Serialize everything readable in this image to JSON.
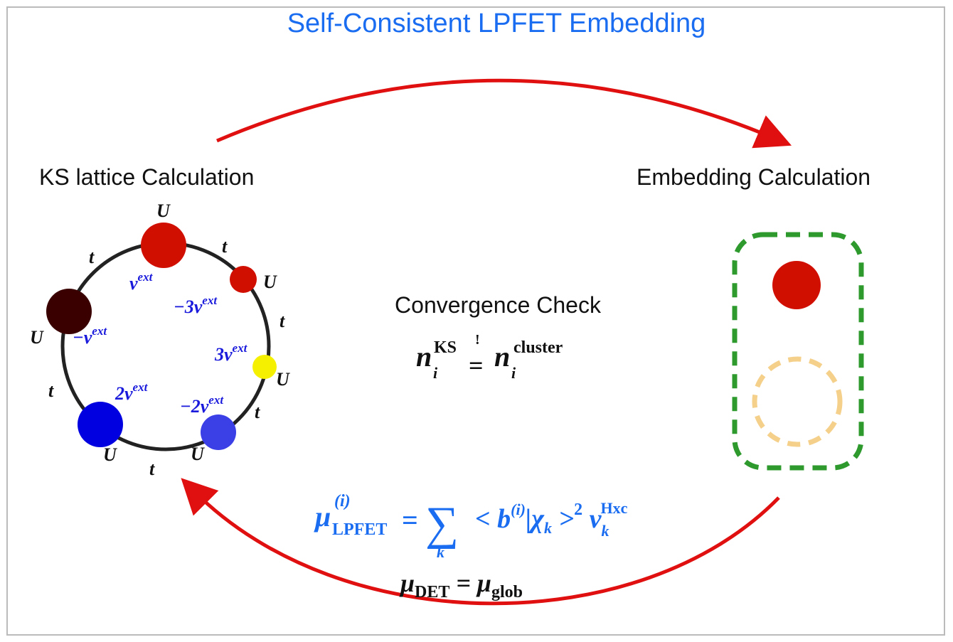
{
  "title": "Self-Consistent LPFET Embedding",
  "left_heading": "KS lattice Calculation",
  "right_heading": "Embedding Calculation",
  "center": {
    "heading": "Convergence Check",
    "eq_n": "n",
    "eq_i": "i",
    "eq_ks": "KS",
    "eq_bang": "!",
    "eq_eq": "=",
    "eq_cluster": "cluster"
  },
  "lattice": {
    "U": "U",
    "t": "t",
    "potentials": [
      "v",
      "−3v",
      "3v",
      "−2v",
      "2v",
      "−v"
    ],
    "ext": "ext",
    "node_colors": [
      "#d10f00",
      "#d10f00",
      "#f5f000",
      "#3b3fe6",
      "#0000e0",
      "#3a0000"
    ]
  },
  "formula": {
    "mu": "μ",
    "sup_i": "(i)",
    "sub_lpfet": "LPFET",
    "eq": "=",
    "sum": "∑",
    "sum_k": "k",
    "bra": "< b",
    "mid": "|χ",
    "k": "k",
    "ket": " >",
    "sq": "2",
    "v": " v",
    "hxc": "Hxc",
    "det_mu": "μ",
    "det_sub": "DET",
    "det_eq": " = μ",
    "glob": "glob"
  },
  "colors": {
    "blue": "#1a6cf0",
    "arrow": "#e01010",
    "cluster": "#2e9a2e",
    "bath": "#f5d08a"
  }
}
